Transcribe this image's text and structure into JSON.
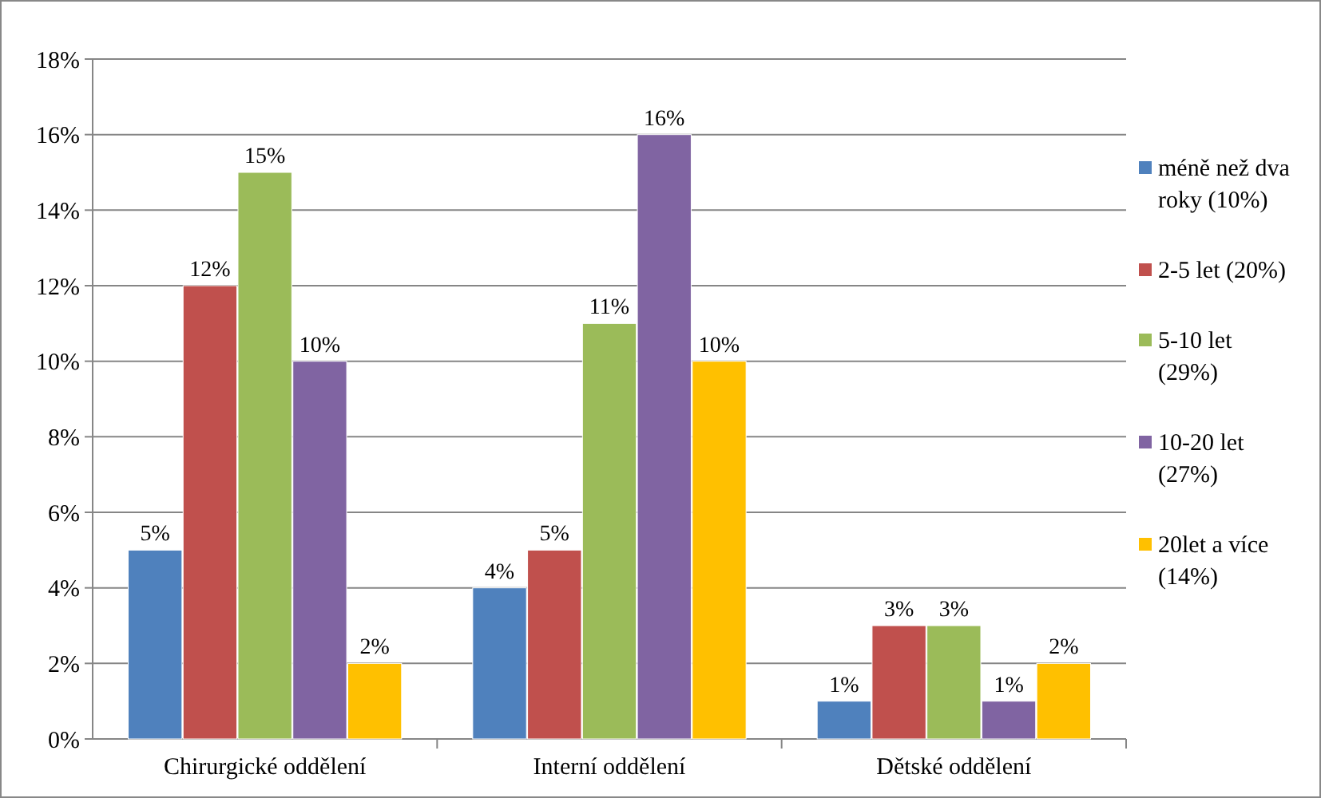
{
  "chart_data": {
    "type": "bar",
    "categories": [
      "Chirurgické oddělení",
      "Interní oddělení",
      "Dětské oddělení"
    ],
    "series": [
      {
        "name": "méně než dva roky (10%)",
        "color": "#4f81bd",
        "values": [
          5,
          4,
          1
        ],
        "value_labels": [
          "5%",
          "4%",
          "1%"
        ]
      },
      {
        "name": "2-5 let (20%)",
        "color": "#c0504d",
        "values": [
          12,
          5,
          3
        ],
        "value_labels": [
          "12%",
          "5%",
          "3%"
        ]
      },
      {
        "name": "5-10 let (29%)",
        "color": "#9bbb59",
        "values": [
          15,
          11,
          3
        ],
        "value_labels": [
          "15%",
          "11%",
          "3%"
        ]
      },
      {
        "name": "10-20 let (27%)",
        "color": "#8064a2",
        "values": [
          10,
          16,
          1
        ],
        "value_labels": [
          "10%",
          "16%",
          "1%"
        ]
      },
      {
        "name": "20let a více (14%)",
        "color": "#ffc000",
        "values": [
          2,
          10,
          2
        ],
        "value_labels": [
          "2%",
          "10%",
          "2%"
        ]
      }
    ],
    "ylim": [
      0,
      18
    ],
    "yticks": [
      {
        "value": 0,
        "label": "0%"
      },
      {
        "value": 2,
        "label": "2%"
      },
      {
        "value": 4,
        "label": "4%"
      },
      {
        "value": 6,
        "label": "6%"
      },
      {
        "value": 8,
        "label": "8%"
      },
      {
        "value": 10,
        "label": "10%"
      },
      {
        "value": 12,
        "label": "12%"
      },
      {
        "value": 14,
        "label": "14%"
      },
      {
        "value": 16,
        "label": "16%"
      },
      {
        "value": 18,
        "label": "18%"
      }
    ],
    "grid": "y",
    "legend": "right"
  }
}
